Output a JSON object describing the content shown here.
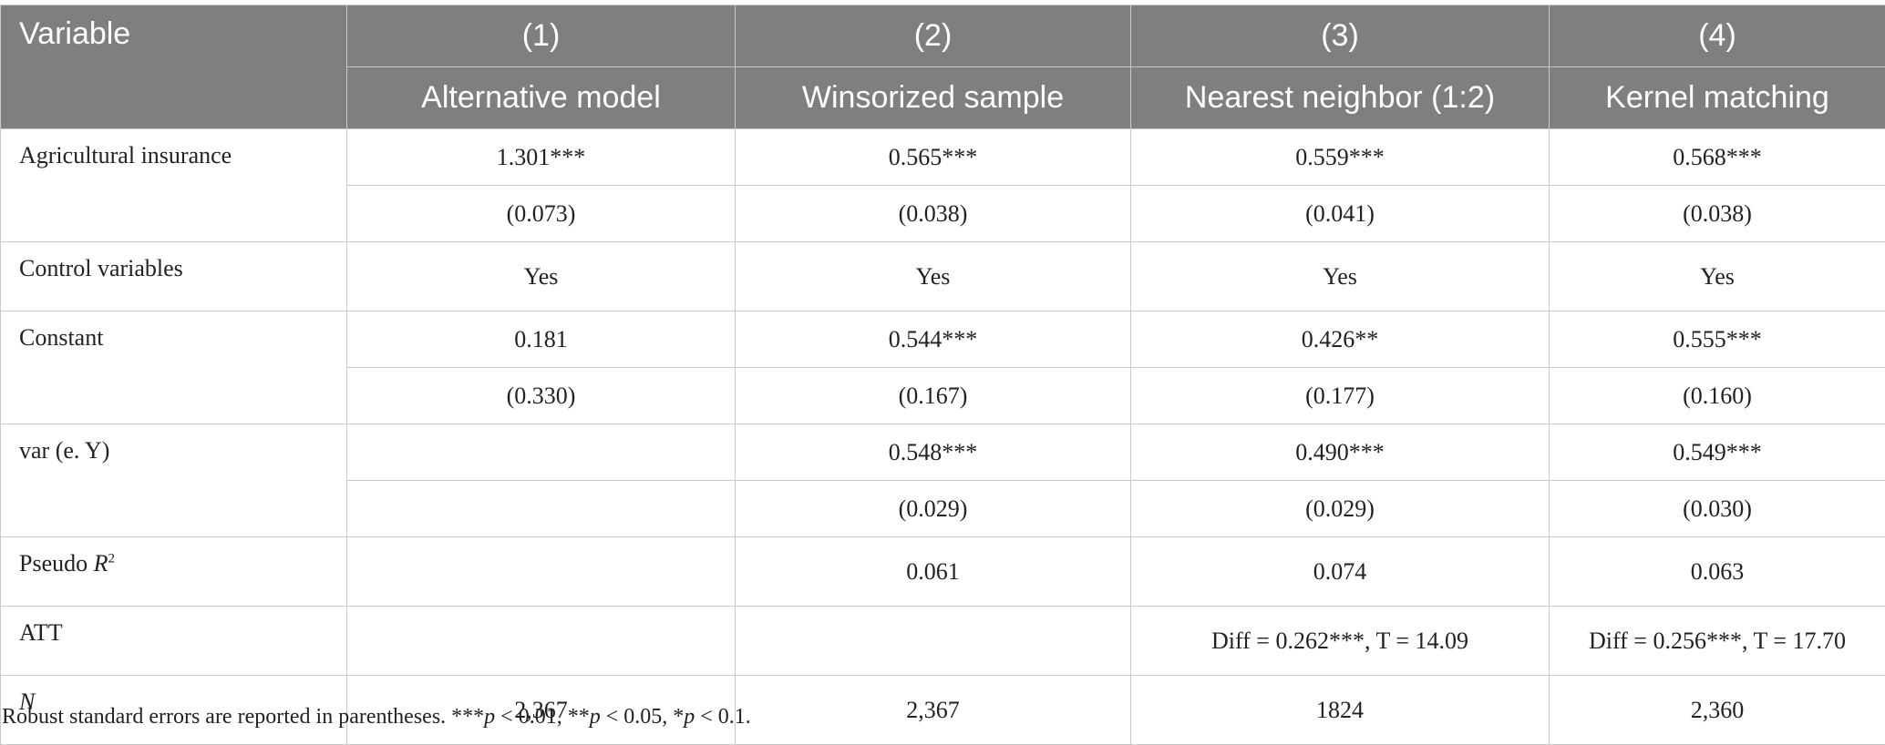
{
  "table": {
    "header": {
      "variable": "Variable",
      "numbers": [
        "(1)",
        "(2)",
        "(3)",
        "(4)"
      ],
      "names": [
        "Alternative model",
        "Winsorized sample",
        "Nearest neighbor (1:2)",
        "Kernel matching"
      ]
    },
    "rows": [
      {
        "label": [
          {
            "text": "Agricultural insurance"
          }
        ],
        "lines": [
          [
            "1.301***",
            "0.565***",
            "0.559***",
            "0.568***"
          ],
          [
            "(0.073)",
            "(0.038)",
            "(0.041)",
            "(0.038)"
          ]
        ]
      },
      {
        "label": [
          {
            "text": "Control variables"
          }
        ],
        "lines": [
          [
            "Yes",
            "Yes",
            "Yes",
            "Yes"
          ]
        ]
      },
      {
        "label": [
          {
            "text": "Constant"
          }
        ],
        "lines": [
          [
            "0.181",
            "0.544***",
            "0.426**",
            "0.555***"
          ],
          [
            "(0.330)",
            "(0.167)",
            "(0.177)",
            "(0.160)"
          ]
        ]
      },
      {
        "label": [
          {
            "text": "var (e. Y)"
          }
        ],
        "lines": [
          [
            null,
            "0.548***",
            "0.490***",
            "0.549***"
          ],
          [
            null,
            "(0.029)",
            "(0.029)",
            "(0.030)"
          ]
        ]
      },
      {
        "label": [
          {
            "text": "Pseudo "
          },
          {
            "text": "R",
            "italic": true
          },
          {
            "text": "2",
            "sup": true
          }
        ],
        "lines": [
          [
            null,
            "0.061",
            "0.074",
            "0.063"
          ]
        ]
      },
      {
        "label": [
          {
            "text": "ATT"
          }
        ],
        "lines": [
          [
            null,
            null,
            "Diff = 0.262***, T = 14.09",
            "Diff = 0.256***, T = 17.70"
          ]
        ]
      },
      {
        "label": [
          {
            "text": "N",
            "italic": true
          }
        ],
        "lines": [
          [
            "2,367",
            "2,367",
            "1824",
            "2,360"
          ]
        ]
      }
    ]
  },
  "footnote": [
    {
      "text": "Robust standard errors are reported in parentheses. ***"
    },
    {
      "text": "p",
      "italic": true
    },
    {
      "text": " < 0.01, **"
    },
    {
      "text": "p",
      "italic": true
    },
    {
      "text": " < 0.05, *"
    },
    {
      "text": "p",
      "italic": true
    },
    {
      "text": " < 0.1."
    }
  ]
}
